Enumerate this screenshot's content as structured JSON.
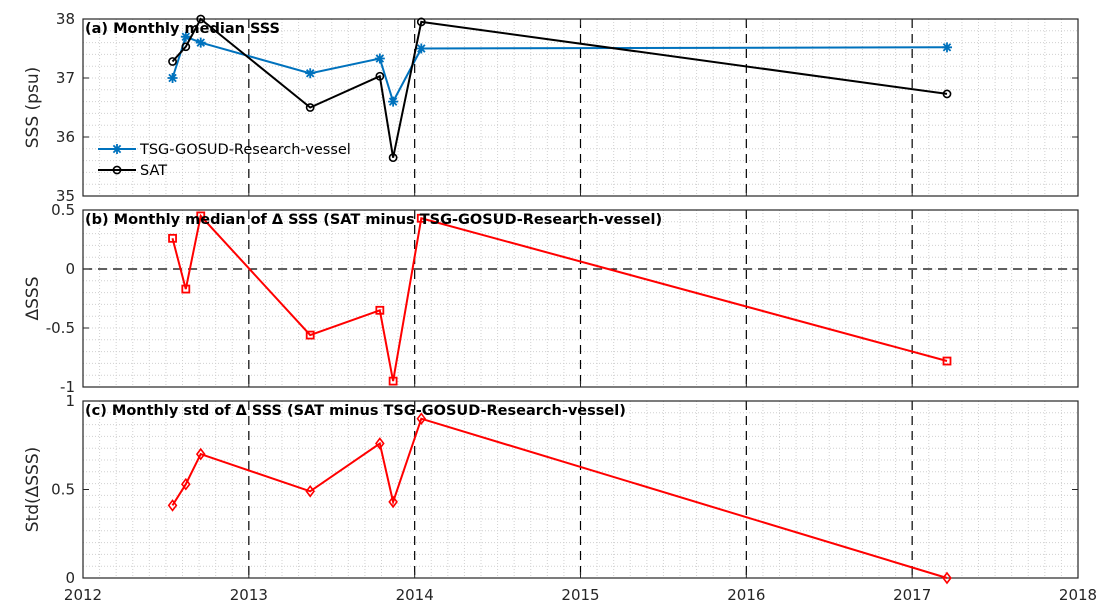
{
  "chart_data": [
    {
      "type": "line",
      "title": "(a) Monthly median SSS",
      "xlabel": "",
      "ylabel": "SSS (psu)",
      "xlim": [
        2012,
        2018
      ],
      "ylim": [
        35,
        38
      ],
      "xticks": [
        "2012",
        "2013",
        "2014",
        "2015",
        "2016",
        "2017",
        "2018"
      ],
      "yticks": [
        "35",
        "36",
        "37",
        "38"
      ],
      "grid": "minor dotted, major dashed on x",
      "legend": "left",
      "series": [
        {
          "name": "TSG-GOSUD-Research-vessel",
          "color": "#0072BD",
          "marker": "asterisk",
          "x": [
            2012.54,
            2012.62,
            2012.71,
            2013.37,
            2013.79,
            2013.87,
            2014.04,
            2017.21
          ],
          "y": [
            37.0,
            37.7,
            37.6,
            37.08,
            37.33,
            36.6,
            37.5,
            37.52
          ]
        },
        {
          "name": "SAT",
          "color": "#000000",
          "marker": "circle",
          "x": [
            2012.54,
            2012.62,
            2012.71,
            2013.37,
            2013.79,
            2013.87,
            2014.04,
            2017.21
          ],
          "y": [
            37.28,
            37.53,
            38.0,
            36.5,
            37.03,
            35.65,
            37.95,
            36.73
          ]
        }
      ]
    },
    {
      "type": "line",
      "title": "(b) Monthly median of Δ SSS (SAT minus TSG-GOSUD-Research-vessel)",
      "xlabel": "",
      "ylabel": "ΔSSS",
      "xlim": [
        2012,
        2018
      ],
      "ylim": [
        -1,
        0.5
      ],
      "xticks": [
        "2012",
        "2013",
        "2014",
        "2015",
        "2016",
        "2017",
        "2018"
      ],
      "yticks": [
        "-1",
        "-0.5",
        "0",
        "0.5"
      ],
      "zero_line": true,
      "series": [
        {
          "color": "#FF0000",
          "marker": "square",
          "x": [
            2012.54,
            2012.62,
            2012.71,
            2013.37,
            2013.79,
            2013.87,
            2014.04,
            2017.21
          ],
          "y": [
            0.26,
            -0.17,
            0.45,
            -0.56,
            -0.35,
            -0.95,
            0.43,
            -0.78
          ]
        }
      ]
    },
    {
      "type": "line",
      "title": "(c) Monthly std of Δ SSS (SAT minus TSG-GOSUD-Research-vessel)",
      "xlabel": "",
      "ylabel": "Std(ΔSSS)",
      "xlim": [
        2012,
        2018
      ],
      "ylim": [
        0,
        1
      ],
      "xticks": [
        "2012",
        "2013",
        "2014",
        "2015",
        "2016",
        "2017",
        "2018"
      ],
      "yticks": [
        "0",
        "0.5",
        "1"
      ],
      "series": [
        {
          "color": "#FF0000",
          "marker": "diamond",
          "x": [
            2012.54,
            2012.62,
            2012.71,
            2013.37,
            2013.79,
            2013.87,
            2014.04,
            2017.21
          ],
          "y": [
            0.41,
            0.53,
            0.7,
            0.49,
            0.76,
            0.43,
            0.9,
            0.0
          ]
        }
      ]
    }
  ]
}
